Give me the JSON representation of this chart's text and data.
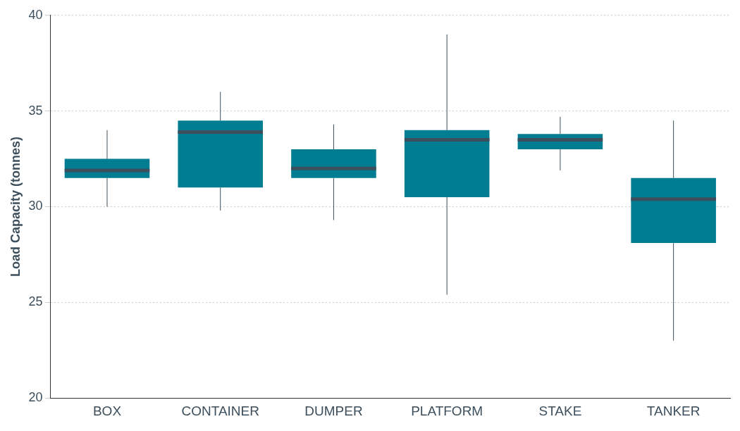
{
  "chart_data": {
    "type": "box",
    "ylabel": "Load Capacity (tonnes)",
    "categories": [
      "BOX",
      "CONTAINER",
      "DUMPER",
      "PLATFORM",
      "STAKE",
      "TANKER"
    ],
    "color": "#007d91",
    "ylim": [
      20,
      40
    ],
    "yticks": [
      20,
      25,
      30,
      35,
      40
    ],
    "grid": "y",
    "legend": false,
    "boxes": [
      {
        "low": 30.0,
        "q1": 31.5,
        "median": 31.9,
        "q3": 32.5,
        "high": 34.0
      },
      {
        "low": 29.8,
        "q1": 31.0,
        "median": 33.9,
        "q3": 34.5,
        "high": 36.0
      },
      {
        "low": 29.3,
        "q1": 31.5,
        "median": 32.0,
        "q3": 33.0,
        "high": 34.3
      },
      {
        "low": 25.4,
        "q1": 30.5,
        "median": 33.5,
        "q3": 34.0,
        "high": 39.0
      },
      {
        "low": 31.9,
        "q1": 33.0,
        "median": 33.5,
        "q3": 33.8,
        "high": 34.7
      },
      {
        "low": 23.0,
        "q1": 28.1,
        "median": 30.4,
        "q3": 31.5,
        "high": 34.5
      }
    ]
  }
}
